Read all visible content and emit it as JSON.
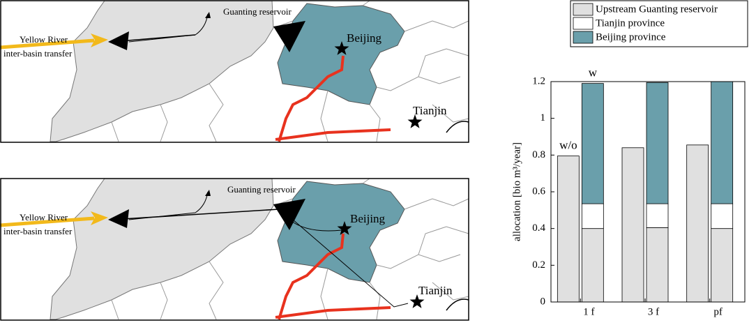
{
  "maps": [
    {
      "labels": [
        "Guanting reservoir",
        "Yellow River",
        "inter-basin transfer",
        "Beijing",
        "Tianjin"
      ]
    },
    {
      "labels": [
        "Guanting reservoir",
        "Yellow River",
        "inter-basin transfer",
        "Beijing",
        "Tianjin"
      ]
    }
  ],
  "chart_data": {
    "type": "bar",
    "stacked": true,
    "ylabel": "allocation [bio m³/year]",
    "categories": [
      "1 f",
      "3 f",
      "pf"
    ],
    "scenario_labels": [
      "w/o",
      "w"
    ],
    "series": [
      {
        "name": "Upstream Guanting reservoir",
        "color": "#e0e0e0",
        "values": [
          [
            0.795,
            0.4
          ],
          [
            0.84,
            0.405
          ],
          [
            0.855,
            0.4
          ]
        ]
      },
      {
        "name": "Tianjin province",
        "color": "#ffffff",
        "values": [
          [
            null,
            0.135
          ],
          [
            null,
            0.13
          ],
          [
            null,
            0.135
          ]
        ]
      },
      {
        "name": "Beijing province",
        "color": "#6a9fab",
        "values": [
          [
            null,
            0.655
          ],
          [
            null,
            0.66
          ],
          [
            null,
            0.665
          ]
        ]
      }
    ],
    "ylim": [
      0,
      1.2
    ],
    "yticks": [
      0,
      0.2,
      0.4,
      0.6,
      0.8,
      1,
      1.2
    ],
    "legend": "top"
  }
}
